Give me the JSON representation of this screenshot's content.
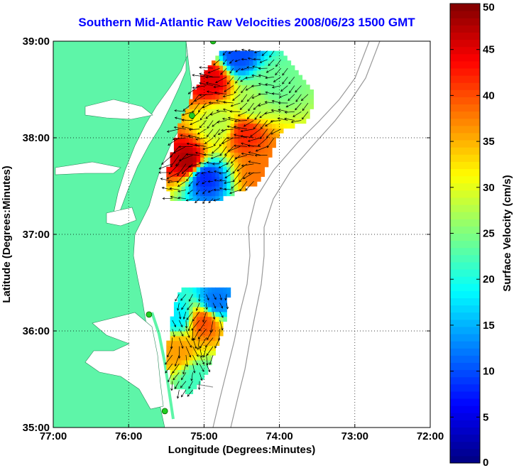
{
  "chart_data": {
    "type": "heatmap",
    "title": "Southern Mid-Atlantic Raw Velocities 2008/06/23 1500 GMT",
    "title_color": "#0000ff",
    "xlabel": "Longitude (Degrees:Minutes)",
    "ylabel": "Latitude (Degrees:Minutes)",
    "xlim": [
      -77,
      -72
    ],
    "ylim": [
      35,
      39
    ],
    "xticks": [
      {
        "value": -77,
        "label": "77:00"
      },
      {
        "value": -76,
        "label": "76:00"
      },
      {
        "value": -75,
        "label": "75:00"
      },
      {
        "value": -74,
        "label": "74:00"
      },
      {
        "value": -73,
        "label": "73:00"
      },
      {
        "value": -72,
        "label": "72:00"
      }
    ],
    "yticks": [
      {
        "value": 35,
        "label": "35:00"
      },
      {
        "value": 36,
        "label": "36:00"
      },
      {
        "value": 37,
        "label": "37:00"
      },
      {
        "value": 38,
        "label": "38:00"
      },
      {
        "value": 39,
        "label": "39:00"
      }
    ],
    "grid": true,
    "colorbar": {
      "label": "Surface Velocity (cm/s)",
      "range": [
        0,
        50
      ],
      "ticks": [
        0,
        5,
        10,
        15,
        20,
        25,
        30,
        35,
        40,
        45,
        50
      ],
      "colormap": "jet"
    },
    "colors": {
      "land": "#5ef5a8",
      "water": "#ffffff",
      "bathymetry": "#999999",
      "radar_sites": "#22cc22"
    },
    "radar_sites": [
      {
        "lon": -74.88,
        "lat": 39.0
      },
      {
        "lon": -75.16,
        "lat": 38.23
      },
      {
        "lon": -75.73,
        "lat": 36.17
      },
      {
        "lon": -75.52,
        "lat": 35.17
      }
    ],
    "velocity_hotspots": [
      {
        "lon": -74.9,
        "lat": 38.6,
        "speed": 45
      },
      {
        "lon": -75.2,
        "lat": 37.75,
        "speed": 48
      },
      {
        "lon": -74.45,
        "lat": 38.05,
        "speed": 42
      },
      {
        "lon": -74.25,
        "lat": 37.65,
        "speed": 38
      },
      {
        "lon": -74.8,
        "lat": 38.15,
        "speed": 28
      },
      {
        "lon": -74.55,
        "lat": 38.85,
        "speed": 10
      },
      {
        "lon": -75.0,
        "lat": 37.6,
        "speed": 8
      },
      {
        "lon": -75.0,
        "lat": 36.1,
        "speed": 40
      },
      {
        "lon": -75.35,
        "lat": 35.8,
        "speed": 36
      },
      {
        "lon": -75.1,
        "lat": 35.5,
        "speed": 22
      },
      {
        "lon": -74.85,
        "lat": 36.3,
        "speed": 12
      },
      {
        "lon": -75.35,
        "lat": 36.15,
        "speed": 18
      },
      {
        "lon": -74.1,
        "lat": 38.55,
        "speed": 24
      },
      {
        "lon": -74.35,
        "lat": 38.35,
        "speed": 27
      }
    ]
  }
}
